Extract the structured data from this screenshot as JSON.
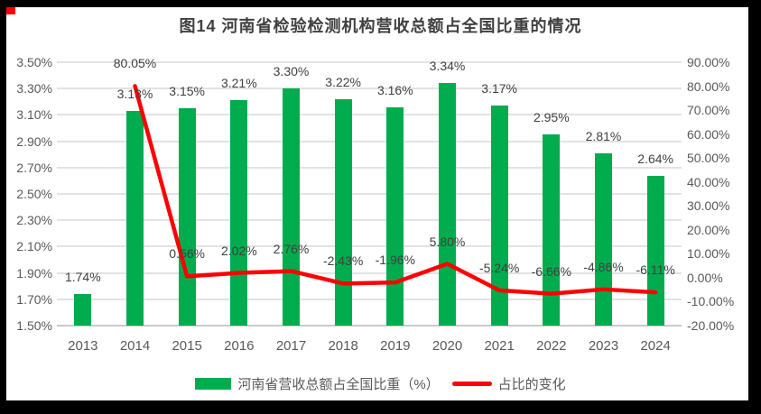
{
  "figure": {
    "corner_marker_color": "#FF0000",
    "frame_color": "#000000",
    "background_color": "#FFFFFF"
  },
  "chart_data": {
    "type": "bar",
    "title": "图14 河南省检验检测机构营收总额占全国比重的情况",
    "categories": [
      "2013",
      "2014",
      "2015",
      "2016",
      "2017",
      "2018",
      "2019",
      "2020",
      "2021",
      "2022",
      "2023",
      "2024"
    ],
    "series": [
      {
        "name": "河南省营收总额占全国比重（%）",
        "type": "bar",
        "axis": "left",
        "color": "#00AC4E",
        "values": [
          1.74,
          3.13,
          3.15,
          3.21,
          3.3,
          3.22,
          3.16,
          3.34,
          3.17,
          2.95,
          2.81,
          2.64
        ],
        "labels": [
          "1.74%",
          "3.13%",
          "3.15%",
          "3.21%",
          "3.30%",
          "3.22%",
          "3.16%",
          "3.34%",
          "3.17%",
          "2.95%",
          "2.81%",
          "2.64%"
        ]
      },
      {
        "name": "占比的变化",
        "type": "line",
        "axis": "right",
        "color": "#FF0000",
        "values": [
          null,
          80.05,
          0.56,
          2.02,
          2.76,
          -2.43,
          -1.96,
          5.8,
          -5.24,
          -6.66,
          -4.86,
          -6.11
        ],
        "labels": [
          "",
          "80.05%",
          "0.56%",
          "2.02%",
          "2.76%",
          "-2.43%",
          "-1.96%",
          "5.80%",
          "-5.24%",
          "-6.66%",
          "-4.86%",
          "-6.11%"
        ]
      }
    ],
    "left_axis": {
      "min": 1.5,
      "max": 3.5,
      "step": 0.2,
      "tick_labels": [
        "3.50%",
        "3.30%",
        "3.10%",
        "2.90%",
        "2.70%",
        "2.50%",
        "2.30%",
        "2.10%",
        "1.90%",
        "1.70%",
        "1.50%"
      ]
    },
    "right_axis": {
      "min": -20,
      "max": 90,
      "step": 10,
      "tick_labels": [
        "90.00%",
        "80.00%",
        "70.00%",
        "60.00%",
        "50.00%",
        "40.00%",
        "30.00%",
        "20.00%",
        "10.00%",
        "0.00%",
        "-10.00%",
        "-20.00%"
      ]
    },
    "grid": true,
    "legend_position": "bottom"
  }
}
